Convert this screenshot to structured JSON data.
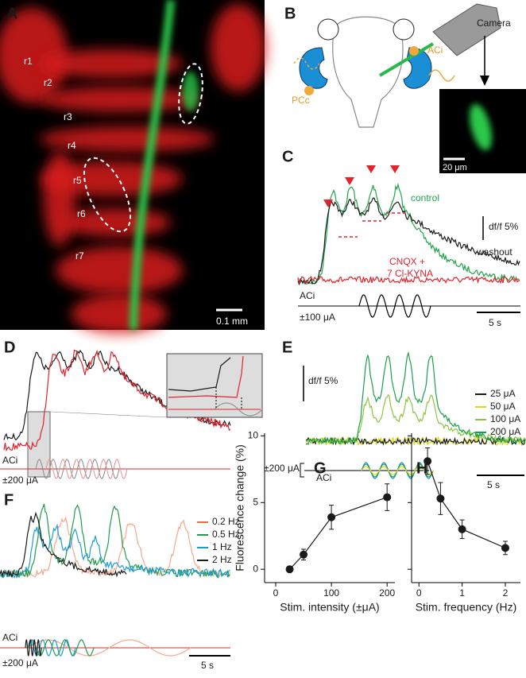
{
  "panels": {
    "A": {
      "letter": "A",
      "labels": [
        "r1",
        "r2",
        "r3",
        "r4",
        "r5",
        "r6",
        "r7"
      ],
      "scale": "0.1 mm"
    },
    "B": {
      "letter": "B",
      "camera": "Camera",
      "aci": "ACi",
      "pcc": "PCc",
      "scale": "20 μm"
    },
    "C": {
      "letter": "C",
      "control": "control",
      "washout": "washout",
      "drug": [
        "CNQX +",
        "7 Cl-KYNA"
      ],
      "df": "df/f 5%",
      "stim": "ACi",
      "amp": "±100 μA",
      "time": "5 s"
    },
    "D": {
      "letter": "D",
      "stim": "ACi",
      "amp": "±200 μA"
    },
    "E": {
      "letter": "E",
      "df": "df/f 5%",
      "stim": "ACi",
      "amp": "±200 μA",
      "time": "5 s",
      "legend": [
        {
          "name": "25 μA",
          "color": "#1a1a1a"
        },
        {
          "name": "50 μA",
          "color": "#d8d81c"
        },
        {
          "name": "100 μA",
          "color": "#8cc63f"
        },
        {
          "name": "200 μA",
          "color": "#1e9e4a"
        }
      ]
    },
    "F": {
      "letter": "F",
      "stim": "ACi",
      "amp": "±200 μA",
      "time": "5 s",
      "legend": [
        {
          "name": "0.2 Hz",
          "color": "#f26b3a"
        },
        {
          "name": "0.5 Hz",
          "color": "#1e9e4a"
        },
        {
          "name": "1 Hz",
          "color": "#1e9ad6"
        },
        {
          "name": "2 Hz",
          "color": "#1a1a1a"
        }
      ]
    }
  },
  "chart_data": [
    {
      "type": "line",
      "label": "G",
      "xlabel": "Stim. intensity (±μA)",
      "ylabel": "Fluorescence change (%)",
      "x": [
        25,
        50,
        100,
        200
      ],
      "series": [
        {
          "color": "#1a1a1a",
          "values": [
            0,
            1.1,
            3.9,
            5.4
          ],
          "errors": [
            0.2,
            0.4,
            0.9,
            1.0
          ]
        }
      ],
      "xlim": [
        -20,
        214
      ],
      "ylim": [
        -1,
        10.2
      ],
      "xticks": [
        0,
        100,
        200
      ],
      "yticks": [
        0,
        5,
        10
      ]
    },
    {
      "type": "line",
      "label": "H",
      "xlabel": "Stim. frequency (Hz)",
      "x": [
        0.2,
        0.5,
        1,
        2
      ],
      "series": [
        {
          "color": "#1a1a1a",
          "values": [
            8.1,
            5.3,
            3.0,
            1.6
          ],
          "errors": [
            1.0,
            1.2,
            0.7,
            0.5
          ]
        }
      ],
      "xlim": [
        -0.17,
        2.35
      ],
      "ylim": [
        -1,
        10.2
      ],
      "xticks": [
        0,
        1,
        2
      ],
      "yticks": [
        0,
        5,
        10
      ]
    }
  ]
}
